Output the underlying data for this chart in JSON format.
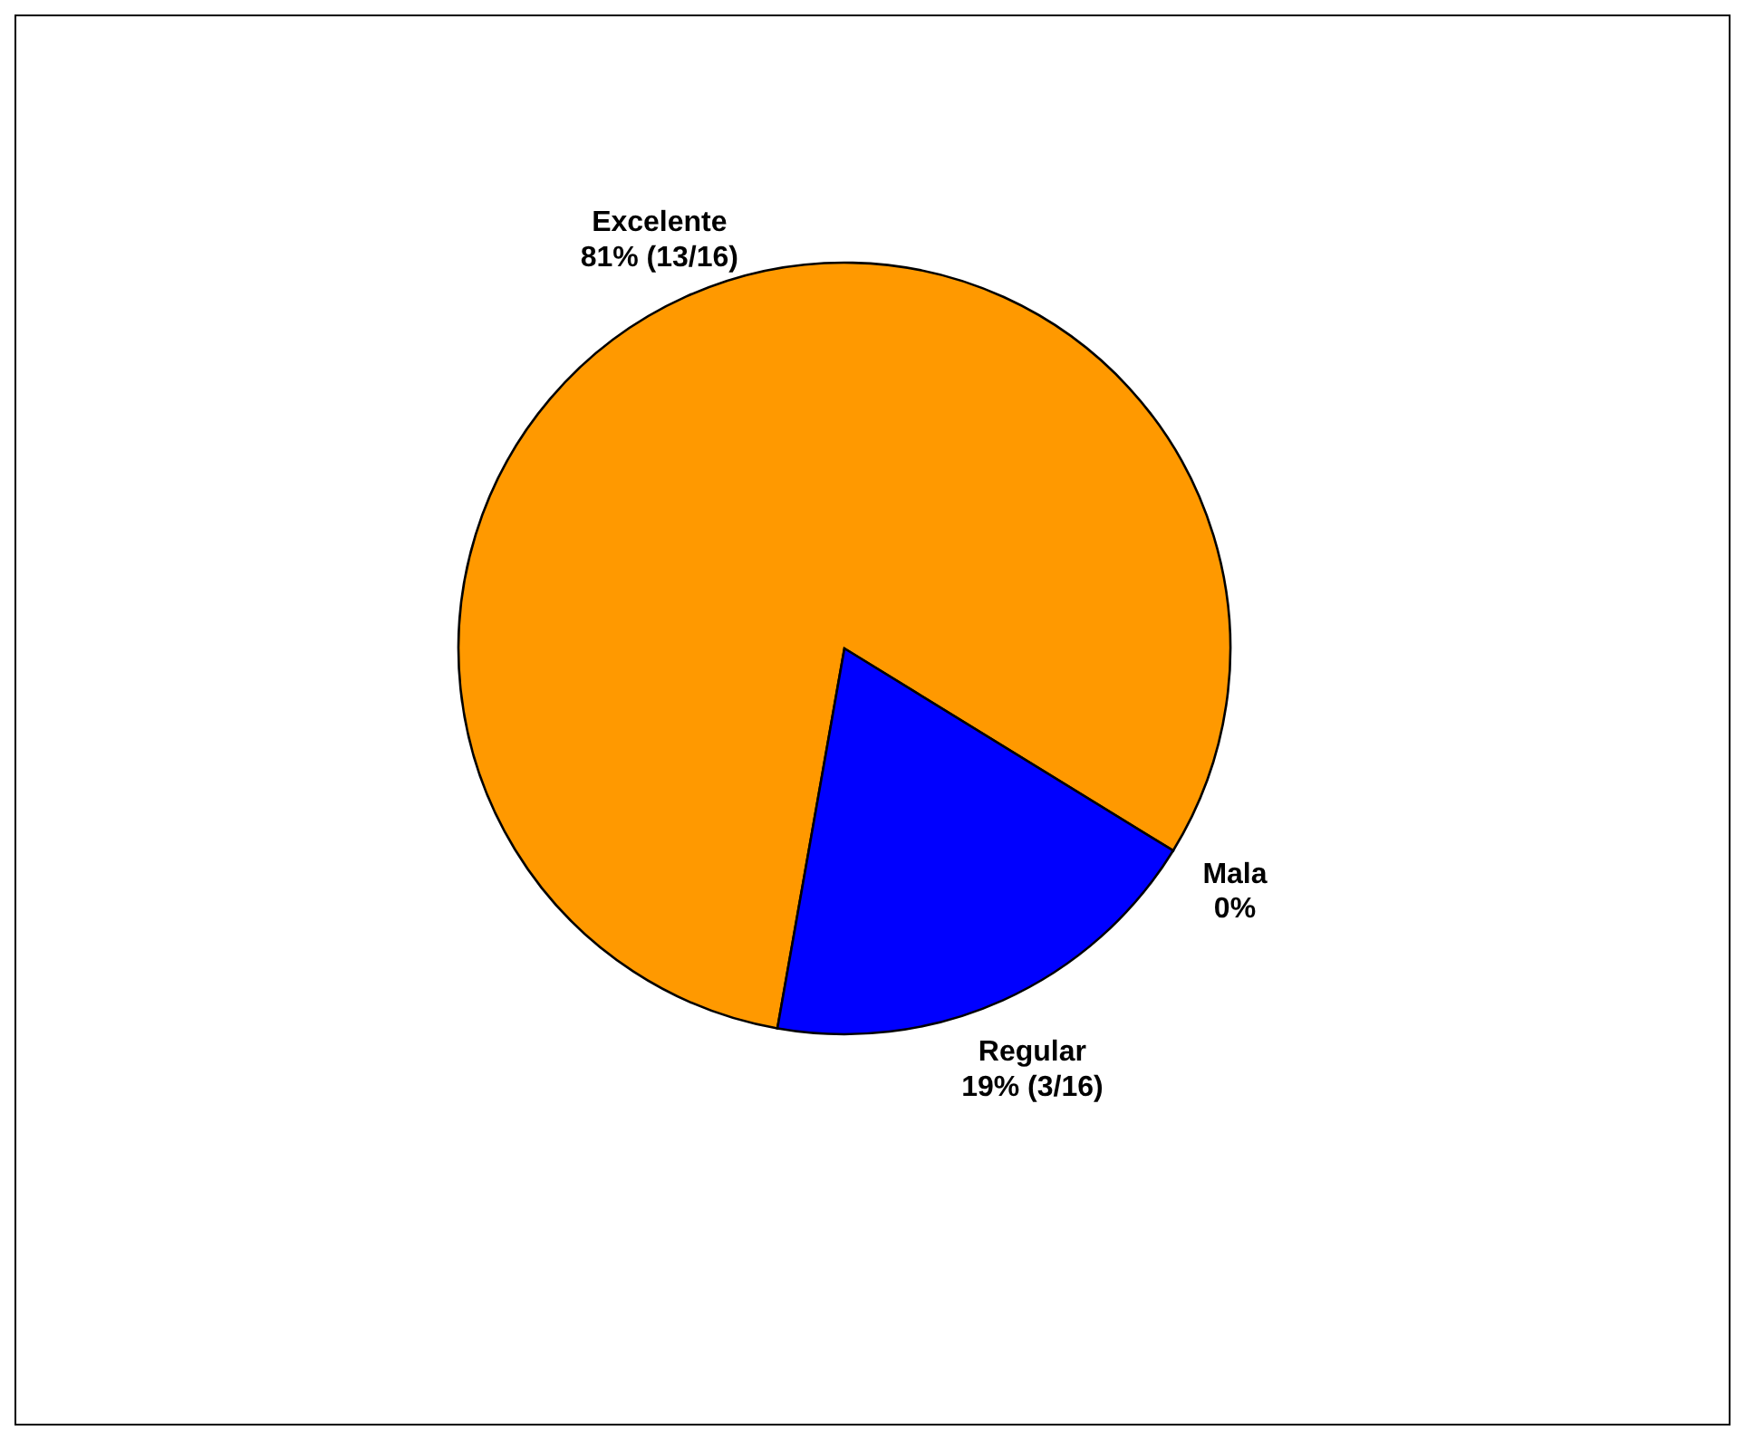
{
  "chart_data": {
    "type": "pie",
    "categories": [
      "Excelente",
      "Mala",
      "Regular"
    ],
    "values": [
      81,
      0,
      19
    ],
    "colors": [
      "#ff9900",
      "#666699",
      "#0000ff"
    ],
    "value_labels": [
      "81% (13/16)",
      "0%",
      "19% (3/16)"
    ]
  }
}
